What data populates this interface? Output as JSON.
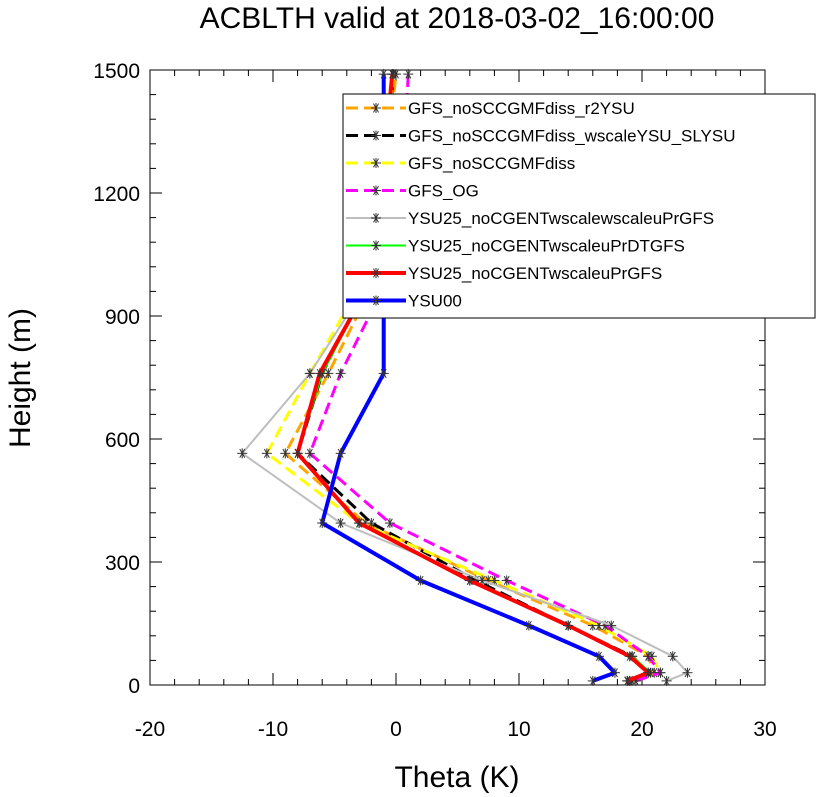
{
  "chart_data": {
    "type": "line",
    "title": "ACBLTH valid at 2018-03-02_16:00:00",
    "xlabel": "Theta (K)",
    "ylabel": "Height (m)",
    "xlim": [
      -20,
      30
    ],
    "ylim": [
      0,
      1500
    ],
    "xticks": [
      -20,
      -10,
      0,
      10,
      20,
      30
    ],
    "yticks": [
      0,
      300,
      600,
      900,
      1200,
      1500
    ],
    "grid": false,
    "legend": "upper-right",
    "y": [
      10,
      30,
      70,
      145,
      255,
      395,
      565,
      760,
      970,
      1210,
      1490
    ],
    "series": [
      {
        "name": "GFS_noSCCGMFdiss_r2YSU",
        "color": "#ffa500",
        "dash": "dash",
        "width": 3,
        "x": [
          19.0,
          21.0,
          20.5,
          16.0,
          7.5,
          -2.5,
          -9.0,
          -5.5,
          -2.0,
          -1.0,
          0.0
        ]
      },
      {
        "name": "GFS_noSCCGMFdiss_wscaleYSU_SLYSU",
        "color": "#000000",
        "dash": "dash",
        "width": 3,
        "x": [
          18.8,
          20.5,
          19.2,
          14.0,
          6.5,
          -2.0,
          -8.0,
          -6.0,
          -2.5,
          -1.0,
          -0.2
        ]
      },
      {
        "name": "GFS_noSCCGMFdiss",
        "color": "#ffff00",
        "dash": "dash",
        "width": 3,
        "x": [
          19.2,
          21.5,
          20.8,
          16.5,
          8.0,
          -3.0,
          -10.5,
          -7.0,
          -3.0,
          -1.2,
          -0.2
        ]
      },
      {
        "name": "GFS_OG",
        "color": "#ff00ff",
        "dash": "dash",
        "width": 3,
        "x": [
          19.5,
          21.5,
          20.5,
          17.0,
          9.0,
          -0.5,
          -7.0,
          -4.5,
          -1.0,
          0.5,
          1.0
        ]
      },
      {
        "name": "YSU25_noCGENTwscalewscaleuPrGFS",
        "color": "#bebebe",
        "dash": "solid",
        "width": 2,
        "x": [
          22.0,
          23.7,
          22.5,
          17.5,
          7.0,
          -4.5,
          -12.5,
          -7.0,
          -2.5,
          -1.2,
          -0.3
        ]
      },
      {
        "name": "YSU25_noCGENTwscaleuPrDTGFS",
        "color": "#00ff00",
        "dash": "solid",
        "width": 2,
        "x": [
          19.0,
          20.7,
          19.2,
          14.0,
          6.0,
          -3.0,
          -8.0,
          -6.0,
          -2.3,
          -1.2,
          -0.3
        ]
      },
      {
        "name": "YSU25_noCGENTwscaleuPrGFS",
        "color": "#ff0000",
        "dash": "solid",
        "width": 4,
        "x": [
          18.8,
          20.5,
          19.0,
          14.0,
          6.0,
          -3.0,
          -8.0,
          -6.2,
          -2.3,
          -1.2,
          -0.3
        ]
      },
      {
        "name": "YSU00",
        "color": "#0000ff",
        "dash": "solid",
        "width": 4,
        "x": [
          16.0,
          17.8,
          16.5,
          10.8,
          2.0,
          -6.0,
          -4.5,
          -1.0,
          -1.0,
          -1.0,
          -1.0
        ]
      }
    ]
  }
}
